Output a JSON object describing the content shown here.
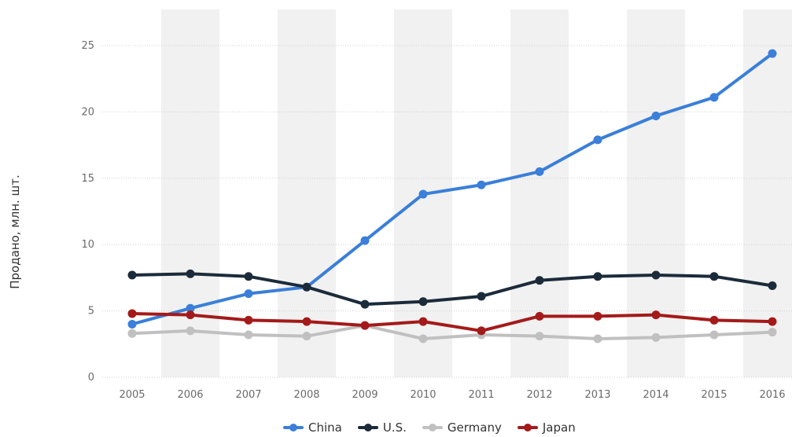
{
  "chart_data": {
    "type": "line",
    "xlabel": "",
    "ylabel": "Продано, млн. шт.",
    "categories": [
      "2005",
      "2006",
      "2007",
      "2008",
      "2009",
      "2010",
      "2011",
      "2012",
      "2013",
      "2014",
      "2015",
      "2016"
    ],
    "ylim": [
      0,
      25
    ],
    "yticks": [
      0,
      5,
      10,
      15,
      20,
      25
    ],
    "grid": true,
    "legend_position": "bottom",
    "series": [
      {
        "name": "China",
        "color": "#3a7fd9",
        "values": [
          4.0,
          5.2,
          6.3,
          6.8,
          10.3,
          13.8,
          14.5,
          15.5,
          17.9,
          19.7,
          21.1,
          24.4
        ]
      },
      {
        "name": "U.S.",
        "color": "#1c2b3a",
        "values": [
          7.7,
          7.8,
          7.6,
          6.8,
          5.5,
          5.7,
          6.1,
          7.3,
          7.6,
          7.7,
          7.6,
          6.9
        ]
      },
      {
        "name": "Germany",
        "color": "#c0c0c0",
        "values": [
          3.3,
          3.5,
          3.2,
          3.1,
          3.9,
          2.9,
          3.2,
          3.1,
          2.9,
          3.0,
          3.2,
          3.4
        ]
      },
      {
        "name": "Japan",
        "color": "#a41a1a",
        "values": [
          4.8,
          4.7,
          4.3,
          4.2,
          3.9,
          4.2,
          3.5,
          4.6,
          4.6,
          4.7,
          4.3,
          4.2
        ]
      }
    ]
  }
}
